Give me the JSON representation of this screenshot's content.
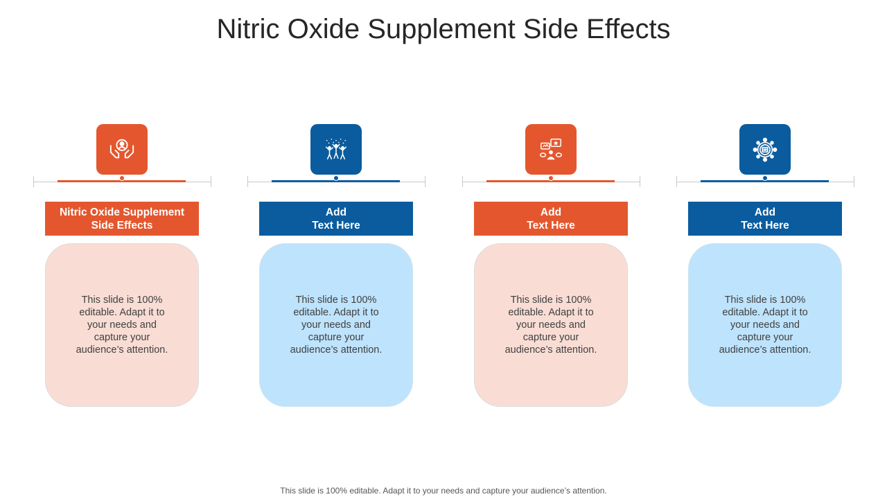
{
  "title": "Nitric Oxide Supplement Side Effects",
  "columns": [
    {
      "icon": "hands-holding-person-icon",
      "label": "Nitric Oxide Supplement\nSide Effects",
      "body": "This slide is 100% editable. Adapt it to your needs and capture your audience’s attention.",
      "color": "#e4572e"
    },
    {
      "icon": "celebrating-people-icon",
      "label": "Add\nText Here",
      "body": "This slide is 100% editable. Adapt it to your needs and capture your audience’s attention.",
      "color": "#0a5c9e"
    },
    {
      "icon": "feedback-chat-icon",
      "label": "Add\nText Here",
      "body": "This slide is 100% editable. Adapt it to your needs and capture your audience’s attention.",
      "color": "#e4572e"
    },
    {
      "icon": "network-gear-icon",
      "label": "Add\nText Here",
      "body": "This slide is 100% editable. Adapt it to your needs and capture your audience’s attention.",
      "color": "#0a5c9e"
    }
  ],
  "footer": "This slide is 100% editable. Adapt it to your needs and capture your audience’s attention."
}
